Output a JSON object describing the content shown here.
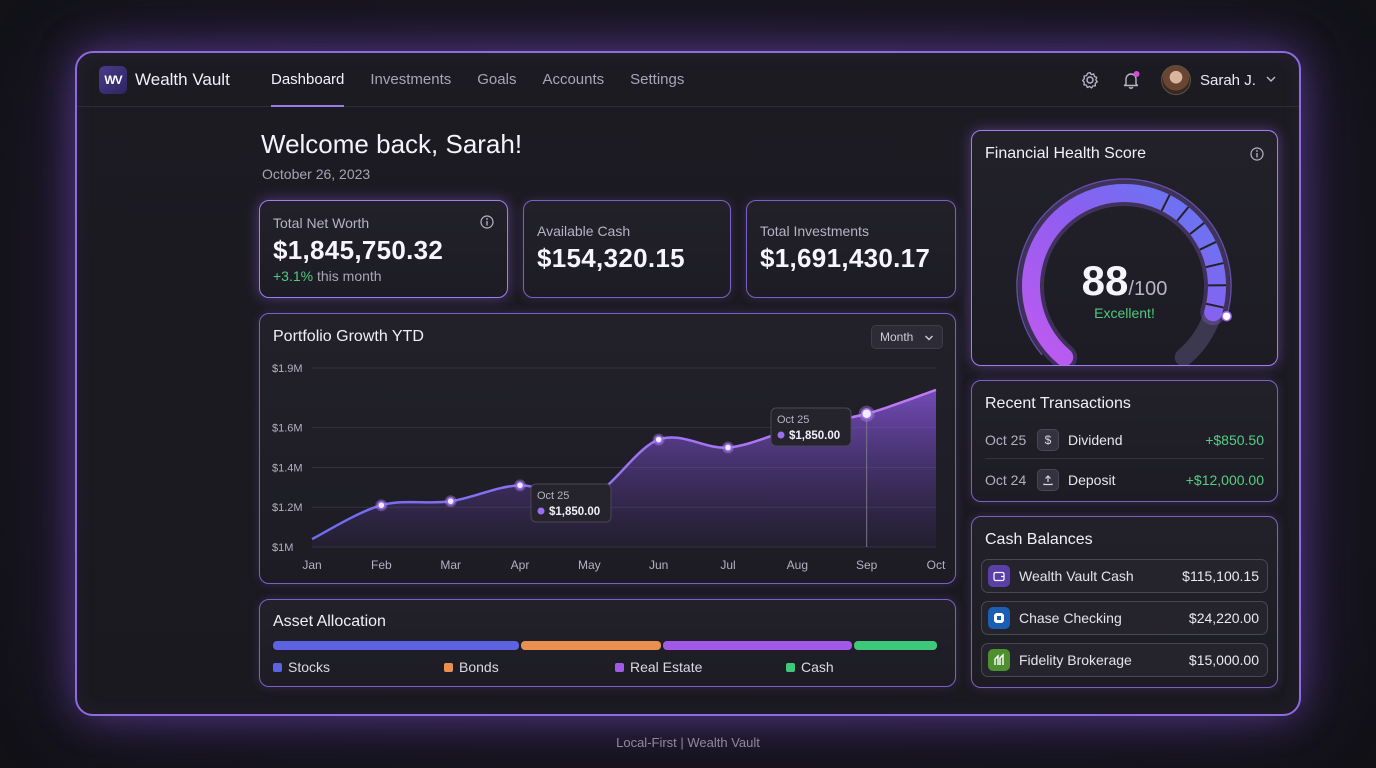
{
  "app": {
    "logo_mark": "WV",
    "name": "Wealth Vault"
  },
  "nav": [
    {
      "label": "Dashboard",
      "active": true
    },
    {
      "label": "Investments",
      "active": false
    },
    {
      "label": "Goals",
      "active": false
    },
    {
      "label": "Accounts",
      "active": false
    },
    {
      "label": "Settings",
      "active": false
    }
  ],
  "user": {
    "name": "Sarah J.",
    "has_notification": true
  },
  "welcome": {
    "title": "Welcome back, Sarah!",
    "date": "October 26, 2023"
  },
  "stats": {
    "net_worth": {
      "label": "Total Net Worth",
      "value": "$1,845,750.32",
      "change_pct": "+3.1%",
      "change_text": "this month"
    },
    "cash": {
      "label": "Available Cash",
      "value": "$154,320.15"
    },
    "investments": {
      "label": "Total Investments",
      "value": "$1,691,430.17"
    }
  },
  "portfolio": {
    "title": "Portfolio Growth YTD",
    "period": "Month",
    "tooltip_1": {
      "date": "Oct 25",
      "value": "$1,850.00"
    },
    "tooltip_2": {
      "date": "Oct 25",
      "value": "$1,850.00"
    }
  },
  "chart_data": {
    "type": "area",
    "x": [
      "Jan",
      "Feb",
      "Mar",
      "Apr",
      "May",
      "Jun",
      "Jul",
      "Aug",
      "Sep",
      "Oct"
    ],
    "y_ticks": [
      "$1.9M",
      "$1.6M",
      "$1.4M",
      "$1.2M",
      "$1M"
    ],
    "series": [
      {
        "values": [
          1.04,
          1.21,
          1.23,
          1.31,
          1.25,
          1.54,
          1.5,
          1.6,
          1.67,
          1.79
        ]
      }
    ],
    "highlight_index": 8,
    "grid": true,
    "color": "#8f5ae8"
  },
  "allocation": {
    "title": "Asset Allocation",
    "segments": [
      {
        "name": "Stocks",
        "share": 0.37,
        "color": "#5b63e0"
      },
      {
        "name": "Bonds",
        "share": 0.21,
        "color": "#e98f4f"
      },
      {
        "name": "Real Estate",
        "share": 0.285,
        "color": "#a25ae6"
      },
      {
        "name": "Cash",
        "share": 0.125,
        "color": "#3ec97a"
      }
    ]
  },
  "health": {
    "title": "Financial Health Score",
    "score": "88",
    "max": "/100",
    "status": "Excellent!",
    "score_fraction": 0.88
  },
  "transactions": {
    "title": "Recent Transactions",
    "items": [
      {
        "date": "Oct 25",
        "icon": "dollar-icon",
        "name": "Dividend",
        "amount": "+$850.50"
      },
      {
        "date": "Oct 24",
        "icon": "upload-icon",
        "name": "Deposit",
        "amount": "+$12,000.00"
      }
    ]
  },
  "balances": {
    "title": "Cash Balances",
    "items": [
      {
        "name": "Wealth Vault Cash",
        "amount": "$115,100.15",
        "icon": "wallet-icon",
        "color": "#5b3fa8"
      },
      {
        "name": "Chase Checking",
        "amount": "$24,220.00",
        "icon": "chase-logo-icon",
        "color": "#1a5fb4"
      },
      {
        "name": "Fidelity Brokerage",
        "amount": "$15,000.00",
        "icon": "fidelity-logo-icon",
        "color": "#4e8f2f"
      }
    ]
  },
  "footer": "Local-First | Wealth Vault"
}
